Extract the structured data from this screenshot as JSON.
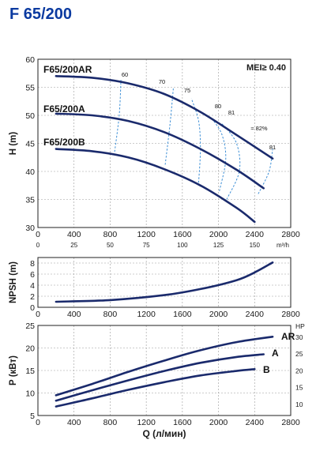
{
  "title": "F 65/200",
  "colors": {
    "curve": "#1a2a6c",
    "efficiency": "#3d8fd6",
    "grid": "#9a9a9a",
    "title": "#0b3aa0"
  },
  "chart_data": [
    {
      "type": "line",
      "name": "head",
      "ylabel": "H (m)",
      "xlim": [
        0,
        2800
      ],
      "ylim": [
        30,
        60
      ],
      "xticks": [
        0,
        400,
        800,
        1200,
        1600,
        2000,
        2400,
        2800
      ],
      "yticks": [
        30,
        35,
        40,
        45,
        50,
        55,
        60
      ],
      "secondary_x": {
        "ticks": [
          0,
          25,
          50,
          75,
          100,
          125,
          150
        ],
        "unit": "m³/h"
      },
      "mei_label": "MEI≥ 0.40",
      "series": [
        {
          "name": "F65/200AR",
          "x": [
            200,
            600,
            1000,
            1400,
            1800,
            2200,
            2600
          ],
          "y": [
            57.0,
            56.7,
            55.7,
            53.8,
            50.6,
            46.5,
            42.3
          ]
        },
        {
          "name": "F65/200A",
          "x": [
            200,
            600,
            1000,
            1400,
            1800,
            2200,
            2500
          ],
          "y": [
            50.3,
            50.0,
            49.0,
            47.0,
            44.0,
            40.3,
            37.0
          ]
        },
        {
          "name": "F65/200B",
          "x": [
            200,
            600,
            1000,
            1400,
            1800,
            2200,
            2400
          ],
          "y": [
            44.0,
            43.6,
            42.5,
            40.4,
            37.5,
            33.5,
            31.0
          ]
        }
      ],
      "efficiency_lines": [
        {
          "label": "60",
          "x": [
            850,
            900,
            920
          ],
          "y": [
            43.5,
            50.0,
            56.3
          ]
        },
        {
          "label": "70",
          "x": [
            1410,
            1460,
            1500
          ],
          "y": [
            41.2,
            48.0,
            54.8
          ]
        },
        {
          "label": "75",
          "x": [
            1780,
            1800,
            1780,
            1700
          ],
          "y": [
            38.0,
            44.0,
            49.0,
            53.0
          ]
        },
        {
          "label": "80",
          "x": [
            2010,
            2080,
            2040,
            1920
          ],
          "y": [
            36.5,
            42.0,
            46.5,
            49.6
          ]
        },
        {
          "label": "81",
          "x": [
            2090,
            2230,
            2200,
            2040
          ],
          "y": [
            35.0,
            40.0,
            45.0,
            48.5
          ]
        },
        {
          "label": "81",
          "x": [
            2440,
            2560,
            2600
          ],
          "y": [
            36.0,
            40.0,
            44.0
          ]
        }
      ],
      "efficiency_labels": [
        "60",
        "70",
        "75",
        "80",
        "81",
        "≈ 82%",
        "81"
      ]
    },
    {
      "type": "line",
      "name": "npsh",
      "ylabel": "NPSH (m)",
      "xlim": [
        0,
        2800
      ],
      "ylim": [
        0,
        9
      ],
      "xticks": [
        0,
        400,
        800,
        1200,
        1600,
        2000,
        2400,
        2800
      ],
      "yticks": [
        0,
        2,
        4,
        6,
        8
      ],
      "series": [
        {
          "name": "NPSH",
          "x": [
            200,
            800,
            1400,
            1800,
            2200,
            2400,
            2600
          ],
          "y": [
            1.0,
            1.3,
            2.2,
            3.3,
            4.9,
            6.3,
            8.1
          ]
        }
      ]
    },
    {
      "type": "line",
      "name": "power",
      "ylabel": "P (кВт)",
      "xlabel": "Q (л/мин)",
      "xlim": [
        0,
        2800
      ],
      "ylim": [
        5,
        25
      ],
      "xticks": [
        0,
        400,
        800,
        1200,
        1600,
        2000,
        2400,
        2800
      ],
      "yticks": [
        5,
        10,
        15,
        20,
        25
      ],
      "secondary_y": {
        "unit": "HP",
        "ticks": [
          10,
          15,
          20,
          25,
          30
        ]
      },
      "series": [
        {
          "name": "AR",
          "x": [
            200,
            600,
            1000,
            1400,
            1800,
            2200,
            2600
          ],
          "y": [
            9.5,
            12.0,
            14.7,
            17.2,
            19.5,
            21.3,
            22.5
          ]
        },
        {
          "name": "A",
          "x": [
            200,
            600,
            1000,
            1400,
            1800,
            2200,
            2500
          ],
          "y": [
            8.3,
            10.6,
            12.8,
            14.9,
            16.7,
            18.0,
            18.6
          ]
        },
        {
          "name": "B",
          "x": [
            200,
            600,
            1000,
            1400,
            1800,
            2200,
            2400
          ],
          "y": [
            7.0,
            8.8,
            10.7,
            12.4,
            13.9,
            14.9,
            15.3
          ]
        }
      ]
    }
  ]
}
